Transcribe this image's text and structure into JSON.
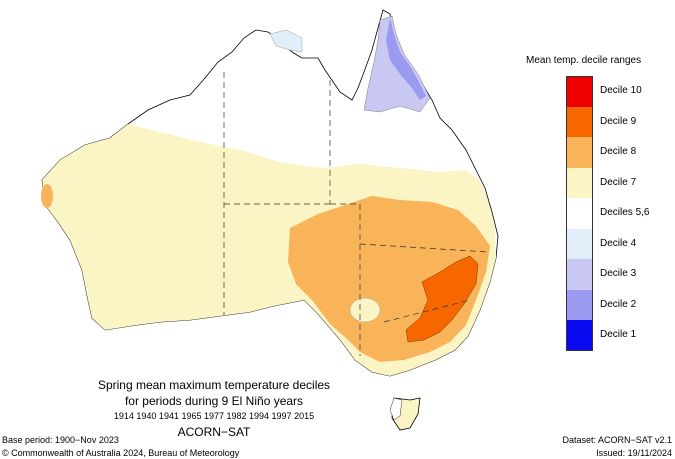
{
  "legend": {
    "title": "Mean temp. decile ranges",
    "items": [
      {
        "label": "Decile 10",
        "color": "#ee0000"
      },
      {
        "label": "Decile 9",
        "color": "#f76700"
      },
      {
        "label": "Decile 8",
        "color": "#f9b45a"
      },
      {
        "label": "Decile 7",
        "color": "#fbf4c4"
      },
      {
        "label": "Deciles 5,6",
        "color": "#ffffff"
      },
      {
        "label": "Decile 4",
        "color": "#e2effb"
      },
      {
        "label": "Decile 3",
        "color": "#c8c8f2"
      },
      {
        "label": "Decile 2",
        "color": "#9a9af0"
      },
      {
        "label": "Decile 1",
        "color": "#0a0af0"
      }
    ]
  },
  "title": {
    "line1": "Spring mean maximum temperature deciles",
    "line2": "for periods during 9 El Niño years",
    "years": "1914 1940 1941 1965 1977 1982 1994 1997 2015",
    "dataset_name": "ACORN−SAT"
  },
  "footer": {
    "base_period": "Base period: 1900−Nov 2023",
    "copyright": "© Commonwealth of Australia 2024, Bureau of Meteorology",
    "dataset": "Dataset: ACORN−SAT v2.1",
    "issued": "Issued: 19/11/2024"
  },
  "map": {
    "region": "Australia",
    "regions": [
      {
        "name": "south-east-australia",
        "decile": "Decile 8"
      },
      {
        "name": "victoria-nsw-highlands",
        "decile": "Decile 9"
      },
      {
        "name": "west-coast-spot",
        "decile": "Decile 8"
      },
      {
        "name": "cape-york-peninsula",
        "decile": "Decile 3"
      },
      {
        "name": "cape-york-east",
        "decile": "Decile 2"
      },
      {
        "name": "kimberley-top-end",
        "decile": "Decile 4"
      },
      {
        "name": "western-and-southern-australia",
        "decile": "Decile 7"
      },
      {
        "name": "tasmania-east",
        "decile": "Decile 7"
      }
    ]
  }
}
